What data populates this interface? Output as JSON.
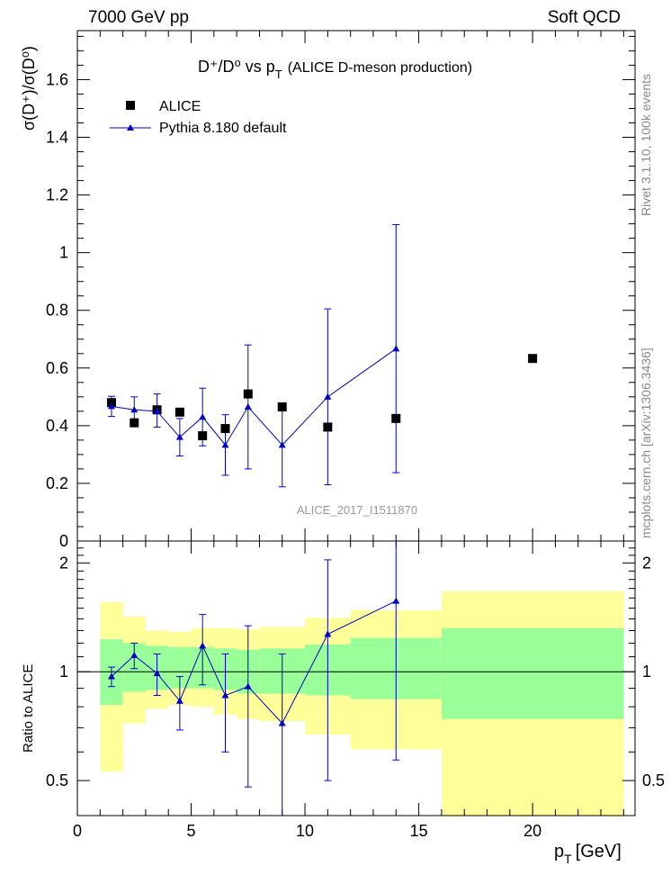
{
  "header": {
    "left": "7000 GeV pp",
    "right": "Soft QCD"
  },
  "side_labels": {
    "rivet": "Rivet 3.1.10,  100k events",
    "mcplots": "mcplots.cern.ch [arXiv:1306.3436]"
  },
  "title": {
    "main": "D⁺/D⁰ vs p",
    "sub": "T",
    "tail": "(ALICE D-meson production)"
  },
  "watermark": "ALICE_2017_I1511870",
  "colors": {
    "data": "#000000",
    "mc": "#0000cc",
    "band_inner": "#99ff99",
    "band_outer": "#ffff99"
  },
  "chart_data": [
    {
      "type": "scatter",
      "panel": "main",
      "ylabel": "σ(D⁺)/σ(D⁰)",
      "xlim": [
        0,
        24.5
      ],
      "ylim": [
        0,
        1.77
      ],
      "yticks": [
        0,
        0.2,
        0.4,
        0.6,
        0.8,
        1,
        1.2,
        1.4,
        1.6
      ],
      "ytick_labels": [
        "0",
        "0.2",
        "0.4",
        "0.6",
        "0.8",
        "1",
        "1.2",
        "1.4",
        "1.6"
      ],
      "legend": [
        "ALICE",
        "Pythia 8.180 default"
      ],
      "series": [
        {
          "name": "ALICE",
          "x": [
            1.5,
            2.5,
            3.5,
            4.5,
            5.5,
            6.5,
            7.5,
            9,
            11,
            14,
            20
          ],
          "y": [
            0.48,
            0.41,
            0.455,
            0.447,
            0.365,
            0.39,
            0.51,
            0.465,
            0.395,
            0.425,
            0.633
          ]
        },
        {
          "name": "Pythia 8.180 default",
          "x": [
            1.5,
            2.5,
            3.5,
            4.5,
            5.5,
            6.5,
            7.5,
            9,
            11,
            14
          ],
          "y": [
            0.467,
            0.455,
            0.45,
            0.36,
            0.43,
            0.333,
            0.465,
            0.333,
            0.5,
            0.667
          ],
          "yerr_low": [
            0.035,
            0.04,
            0.055,
            0.065,
            0.1,
            0.105,
            0.215,
            0.145,
            0.305,
            0.43
          ],
          "yerr_high": [
            0.035,
            0.045,
            0.06,
            0.065,
            0.1,
            0.105,
            0.215,
            0.145,
            0.305,
            0.43
          ]
        }
      ]
    },
    {
      "type": "line",
      "panel": "ratio",
      "xlabel": "p_T [GeV]",
      "ylabel": "Ratio to ALICE",
      "xlim": [
        0,
        24.5
      ],
      "ylim": [
        0.4,
        2.3
      ],
      "log_y": true,
      "xticks": [
        0,
        5,
        10,
        15,
        20
      ],
      "xtick_labels": [
        "0",
        "5",
        "10",
        "15",
        "20"
      ],
      "yticks": [
        0.5,
        1,
        2
      ],
      "ytick_labels": [
        "0.5",
        "1",
        "2"
      ],
      "bands": {
        "edges": [
          1,
          2,
          3,
          4,
          5,
          6,
          7,
          8,
          10,
          12,
          16,
          24
        ],
        "inner_low": [
          0.81,
          0.88,
          0.89,
          0.9,
          0.9,
          0.89,
          0.87,
          0.87,
          0.86,
          0.84,
          0.74
        ],
        "inner_high": [
          1.23,
          1.2,
          1.18,
          1.17,
          1.17,
          1.16,
          1.15,
          1.16,
          1.19,
          1.24,
          1.32
        ],
        "outer_low": [
          0.53,
          0.72,
          0.79,
          0.81,
          0.8,
          0.76,
          0.74,
          0.73,
          0.67,
          0.61,
          0.33
        ],
        "outer_high": [
          1.56,
          1.42,
          1.3,
          1.29,
          1.32,
          1.32,
          1.31,
          1.33,
          1.41,
          1.48,
          1.67
        ]
      },
      "series": [
        {
          "name": "Pythia 8.180 default / ALICE",
          "x": [
            1.5,
            2.5,
            3.5,
            4.5,
            5.5,
            6.5,
            7.5,
            9,
            11,
            14
          ],
          "y": [
            0.97,
            1.11,
            0.99,
            0.83,
            1.18,
            0.86,
            0.91,
            0.72,
            1.27,
            1.57
          ],
          "yerr_low": [
            0.06,
            0.09,
            0.13,
            0.14,
            0.26,
            0.26,
            0.43,
            0.4,
            0.77,
            1.0
          ],
          "yerr_high": [
            0.06,
            0.09,
            0.13,
            0.14,
            0.26,
            0.26,
            0.43,
            0.4,
            0.77,
            1.0
          ]
        }
      ]
    }
  ]
}
